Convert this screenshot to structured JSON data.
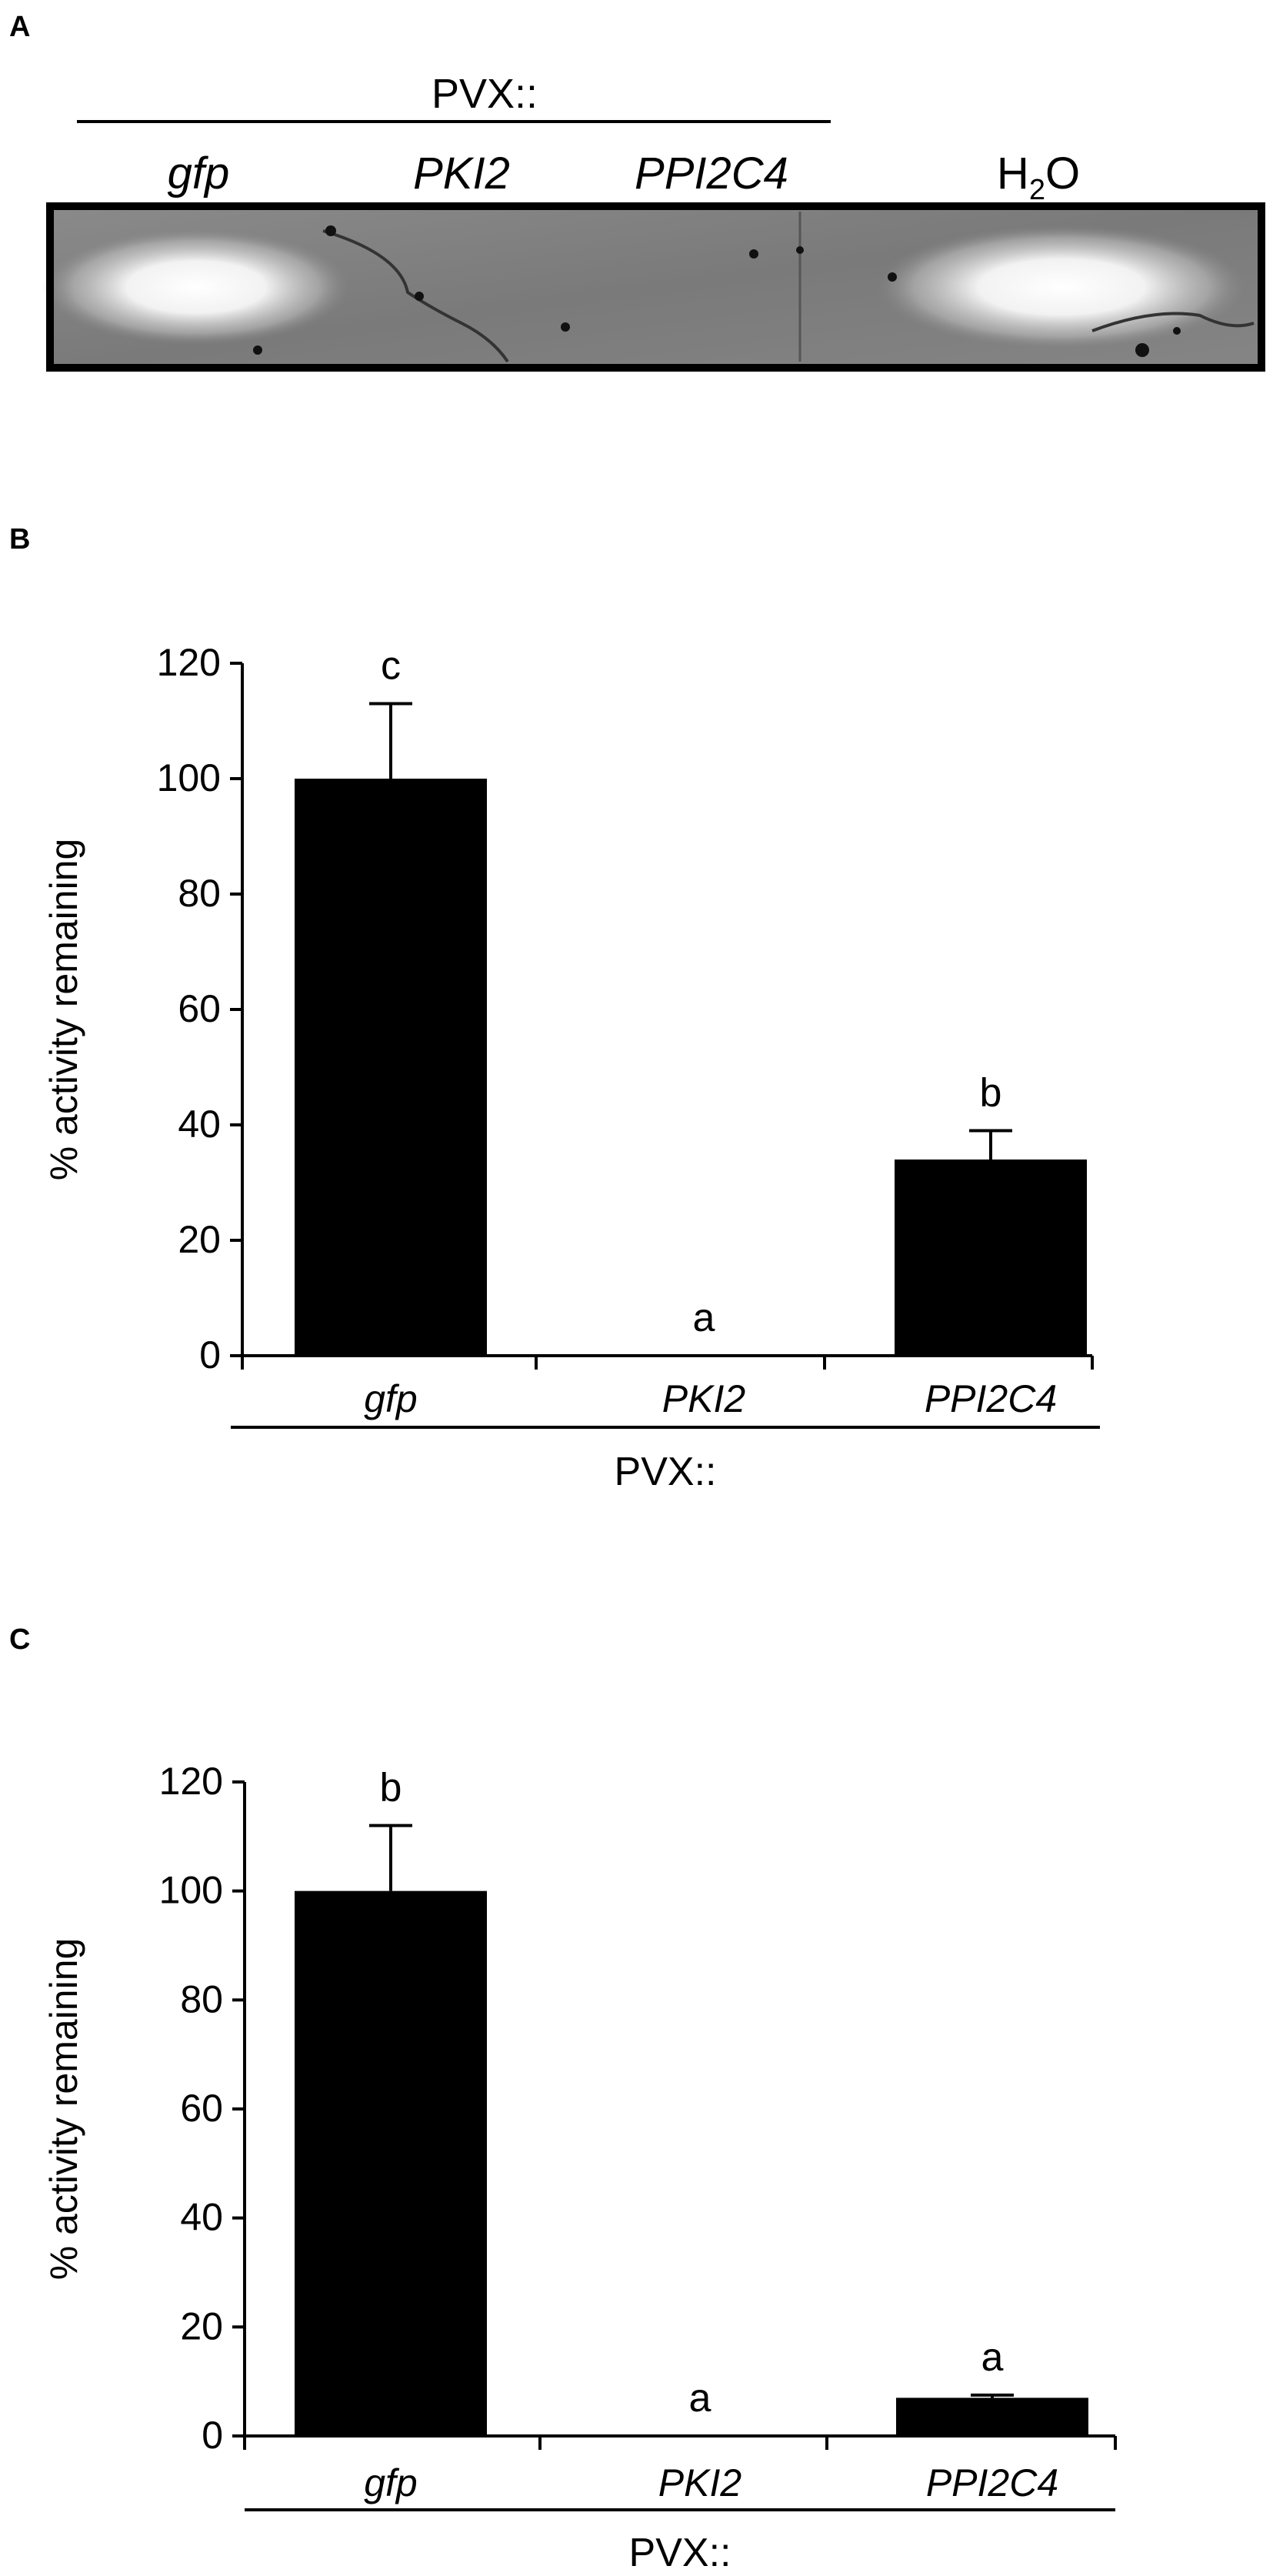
{
  "panel_a": {
    "letter": "A",
    "construct_prefix": "PVX::",
    "lane_labels": [
      "gfp",
      "PKI2",
      "PPI2C4"
    ],
    "control_label_main": "H",
    "control_label_sub": "2",
    "control_label_end": "O"
  },
  "chart_data": [
    {
      "panel": "B",
      "type": "bar",
      "ylabel": "% activity remaining",
      "xlabel": "PVX::",
      "ylim": [
        0,
        120
      ],
      "yticks": [
        0,
        20,
        40,
        60,
        80,
        100,
        120
      ],
      "categories": [
        "gfp",
        "PKI2",
        "PPI2C4"
      ],
      "values": [
        100,
        0,
        34
      ],
      "errors": [
        13,
        0,
        5
      ],
      "significance_letters": [
        "c",
        "a",
        "b"
      ],
      "bar_color": "#000000",
      "grid": false
    },
    {
      "panel": "C",
      "type": "bar",
      "ylabel": "% activity remaining",
      "xlabel": "PVX::",
      "ylim": [
        0,
        120
      ],
      "yticks": [
        0,
        20,
        40,
        60,
        80,
        100,
        120
      ],
      "categories": [
        "gfp",
        "PKI2",
        "PPI2C4"
      ],
      "values": [
        100,
        0,
        7
      ],
      "errors": [
        12,
        0,
        0.5
      ],
      "significance_letters": [
        "b",
        "a",
        "a"
      ],
      "bar_color": "#000000",
      "grid": false
    }
  ]
}
